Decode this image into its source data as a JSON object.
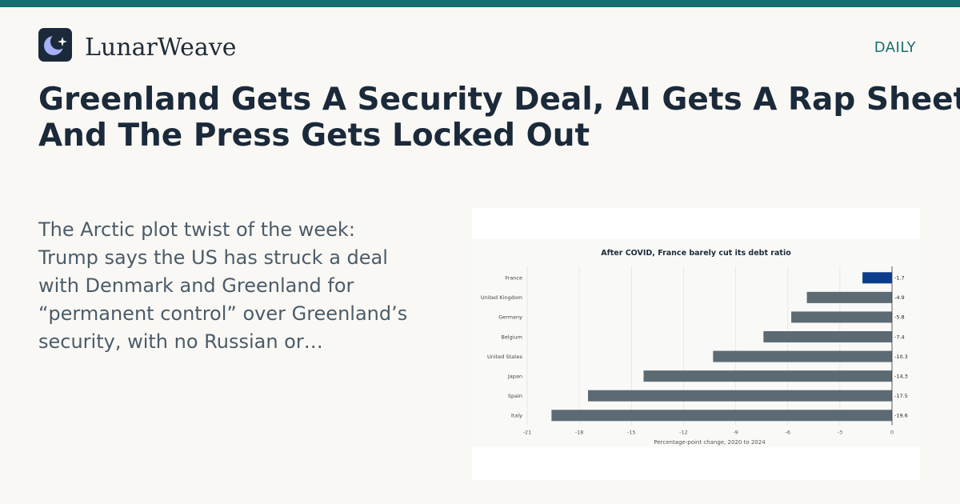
{
  "brand": {
    "name": "LunarWeave",
    "logo_icon": "moon-sparkle-icon",
    "section": "DAILY"
  },
  "colors": {
    "accent": "#17706f",
    "highlight_bar": "#0c3c8c",
    "default_bar": "#5c6a73"
  },
  "article": {
    "headline_lines": [
      "Greenland Gets A Security Deal, AI Gets A Rap Sheet,",
      "And The Press Gets Locked Out"
    ],
    "excerpt_lines": [
      "The Arctic plot twist of the week:",
      "Trump says the US has struck a deal",
      "with Denmark and Greenland for",
      "“permanent control” over Greenland’s",
      "security, with no Russian or…"
    ]
  },
  "chart_data": {
    "type": "bar",
    "orientation": "horizontal",
    "title": "After COVID, France barely cut its debt ratio",
    "xlabel": "Percentage-point change, 2020 to 2024",
    "ylabel": "",
    "xlim": [
      -21,
      0
    ],
    "xticks": [
      -21,
      -18,
      -15,
      -12,
      -9,
      -6,
      -3,
      0
    ],
    "grid": true,
    "categories": [
      "France",
      "United Kingdom",
      "Germany",
      "Belgium",
      "United States",
      "Japan",
      "Spain",
      "Italy"
    ],
    "values": [
      -1.7,
      -4.9,
      -5.8,
      -7.4,
      -10.3,
      -14.3,
      -17.5,
      -19.6
    ],
    "value_labels": [
      "-1.7",
      "-4.9",
      "-5.8",
      "-7.4",
      "-10.3",
      "-14.3",
      "-17.5",
      "-19.6"
    ],
    "highlight": "France"
  }
}
